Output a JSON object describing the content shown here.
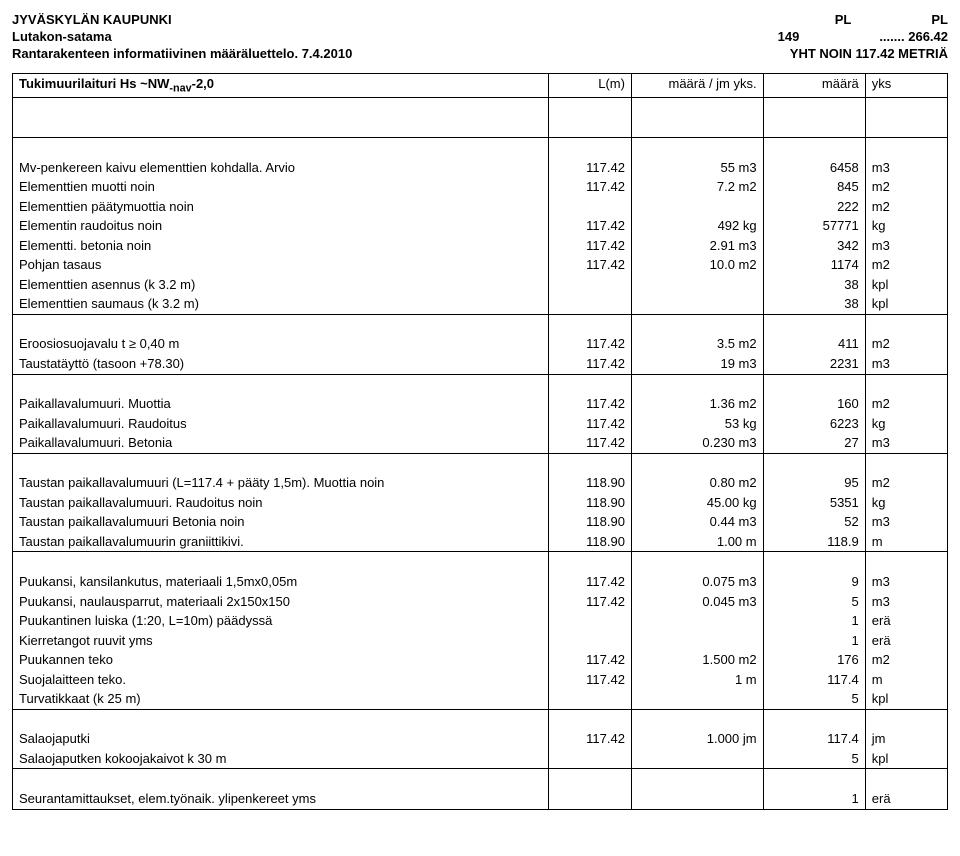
{
  "header": {
    "org": "JYVÄSKYLÄN KAUPUNKI",
    "sub": "Lutakon-satama",
    "desc": "Rantarakenteen informatiivinen määräluettelo. 7.4.2010",
    "pl1_label": "PL",
    "pl1_val": "149",
    "pl2_label": "PL",
    "sep": ".......",
    "pl2_val": "266.42",
    "yht": "YHT NOIN  117.42 METRIÄ"
  },
  "table_header": {
    "title": "Tukimuurilaituri Hs ~NW",
    "title_sub": "-nav",
    "title_suffix": "-2,0",
    "col_lm": "L(m)",
    "col_qty": "määrä / jm yks.",
    "col_tot": "määrä",
    "col_unit": "yks"
  },
  "rows": [
    {
      "desc": "Mv-penkereen kaivu elementtien kohdalla. Arvio",
      "lm": "117.42",
      "qty": "55 m3",
      "tot": "6458",
      "unit": "m3"
    },
    {
      "desc": "Elementtien muotti noin",
      "lm": "117.42",
      "qty": "7.2 m2",
      "tot": "845",
      "unit": "m2"
    },
    {
      "desc": "Elementtien päätymuottia noin",
      "lm": "",
      "qty": "",
      "tot": "222",
      "unit": "m2"
    },
    {
      "desc": "Elementin raudoitus noin",
      "lm": "117.42",
      "qty": "492 kg",
      "tot": "57771",
      "unit": "kg"
    },
    {
      "desc": "Elementti. betonia noin",
      "lm": "117.42",
      "qty": "2.91 m3",
      "tot": "342",
      "unit": "m3"
    },
    {
      "desc": "Pohjan tasaus",
      "lm": "117.42",
      "qty": "10.0 m2",
      "tot": "1174",
      "unit": "m2"
    },
    {
      "desc": "Elementtien asennus (k 3.2 m)",
      "lm": "",
      "qty": "",
      "tot": "38",
      "unit": "kpl"
    },
    {
      "desc": "Elementtien saumaus (k 3.2 m)",
      "lm": "",
      "qty": "",
      "tot": "38",
      "unit": "kpl"
    }
  ],
  "rows2": [
    {
      "desc": "Eroosiosuojavalu t ≥ 0,40 m",
      "lm": "117.42",
      "qty": "3.5 m2",
      "tot": "411",
      "unit": "m2"
    },
    {
      "desc": "Taustatäyttö (tasoon +78.30)",
      "lm": "117.42",
      "qty": "19 m3",
      "tot": "2231",
      "unit": "m3"
    }
  ],
  "rows3": [
    {
      "desc": "Paikallavalumuuri. Muottia",
      "lm": "117.42",
      "qty": "1.36 m2",
      "tot": "160",
      "unit": "m2"
    },
    {
      "desc": "Paikallavalumuuri. Raudoitus",
      "lm": "117.42",
      "qty": "53 kg",
      "tot": "6223",
      "unit": "kg"
    },
    {
      "desc": "Paikallavalumuuri. Betonia",
      "lm": "117.42",
      "qty": "0.230 m3",
      "tot": "27",
      "unit": "m3"
    }
  ],
  "rows4": [
    {
      "desc": "Taustan paikallavalumuuri (L=117.4 + pääty 1,5m). Muottia noin",
      "lm": "118.90",
      "qty": "0.80 m2",
      "tot": "95",
      "unit": "m2"
    },
    {
      "desc": "Taustan paikallavalumuuri. Raudoitus noin",
      "lm": "118.90",
      "qty": "45.00 kg",
      "tot": "5351",
      "unit": "kg"
    },
    {
      "desc": "Taustan paikallavalumuuri Betonia noin",
      "lm": "118.90",
      "qty": "0.44 m3",
      "tot": "52",
      "unit": "m3"
    },
    {
      "desc": "Taustan paikallavalumuurin graniittikivi.",
      "lm": "118.90",
      "qty": "1.00 m",
      "tot": "118.9",
      "unit": "m"
    }
  ],
  "rows5": [
    {
      "desc": "Puukansi, kansilankutus, materiaali 1,5mx0,05m",
      "lm": "117.42",
      "qty": "0.075 m3",
      "tot": "9",
      "unit": "m3"
    },
    {
      "desc": "Puukansi, naulausparrut, materiaali 2x150x150",
      "lm": "117.42",
      "qty": "0.045 m3",
      "tot": "5",
      "unit": "m3"
    },
    {
      "desc": "Puukantinen luiska (1:20, L=10m) päädyssä",
      "lm": "",
      "qty": "",
      "tot": "1",
      "unit": "erä"
    },
    {
      "desc": "Kierretangot ruuvit yms",
      "lm": "",
      "qty": "",
      "tot": "1",
      "unit": "erä"
    },
    {
      "desc": "Puukannen teko",
      "lm": "117.42",
      "qty": "1.500 m2",
      "tot": "176",
      "unit": "m2"
    },
    {
      "desc": "Suojalaitteen teko.",
      "lm": "117.42",
      "qty": "1 m",
      "tot": "117.4",
      "unit": "m"
    },
    {
      "desc": "Turvatikkaat (k 25 m)",
      "lm": "",
      "qty": "",
      "tot": "5",
      "unit": "kpl"
    }
  ],
  "rows6": [
    {
      "desc": "Salaojaputki",
      "lm": "117.42",
      "qty": "1.000 jm",
      "tot": "117.4",
      "unit": "jm"
    },
    {
      "desc": "Salaojaputken kokoojakaivot k 30 m",
      "lm": "",
      "qty": "",
      "tot": "5",
      "unit": "kpl"
    }
  ],
  "rows7": [
    {
      "desc": "Seurantamittaukset, elem.työnaik. ylipenkereet yms",
      "lm": "",
      "qty": "",
      "tot": "1",
      "unit": "erä"
    }
  ]
}
